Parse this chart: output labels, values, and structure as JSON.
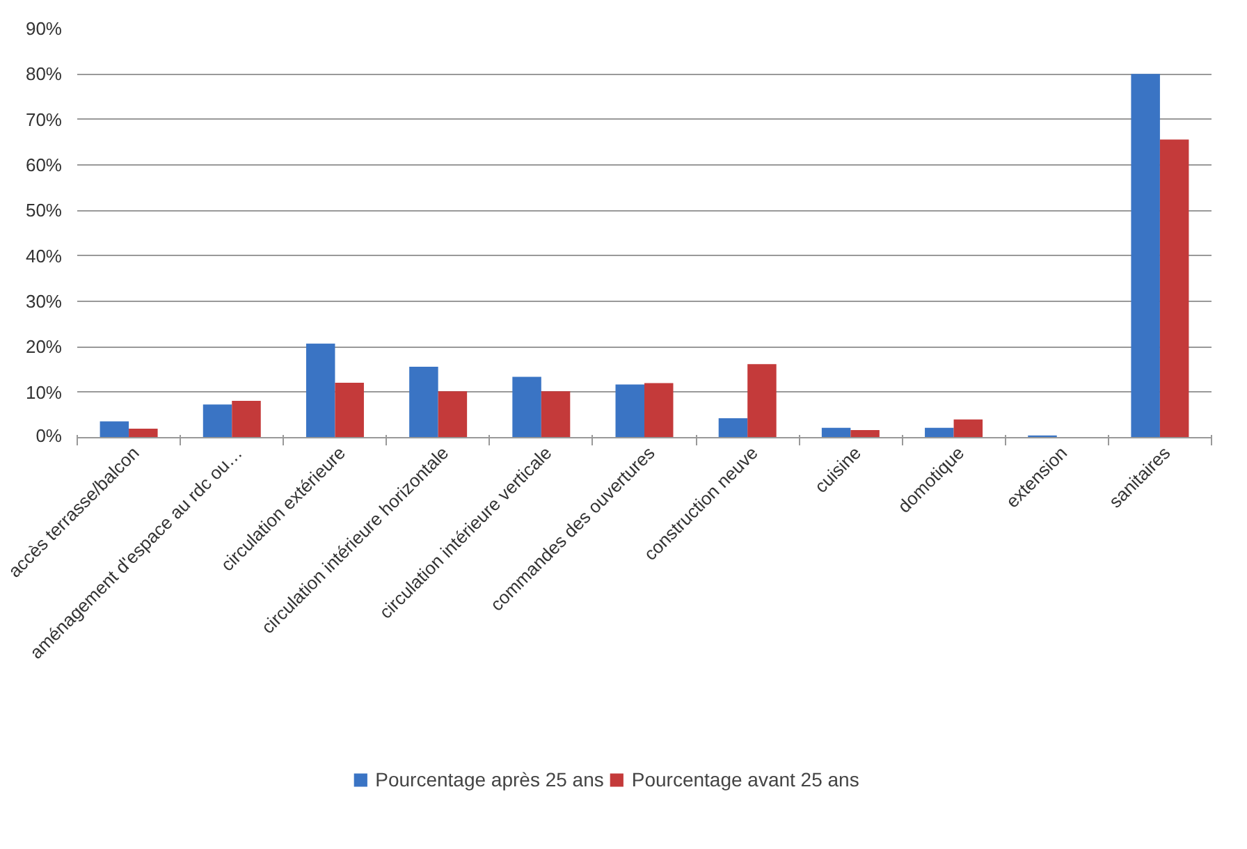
{
  "chart_data": {
    "type": "bar",
    "categories": [
      "accès terrasse/balcon",
      "aménagement d'espace au rdc ou…",
      "circulation extérieure",
      "circulation intérieure horizontale",
      "circulation intérieure verticale",
      "commandes des ouvertures",
      "construction neuve",
      "cuisine",
      "domotique",
      "extension",
      "sanitaires"
    ],
    "series": [
      {
        "name": "Pourcentage après 25 ans",
        "color": "#3a74c4",
        "values": [
          3.6,
          7.3,
          20.7,
          15.6,
          13.4,
          11.7,
          4.3,
          2.2,
          2.2,
          0.5,
          80
        ]
      },
      {
        "name": "Pourcentage avant 25 ans",
        "color": "#c43a3a",
        "values": [
          2.0,
          8.1,
          12.1,
          10.2,
          10.2,
          12.0,
          16.2,
          1.7,
          4.0,
          0,
          65.6
        ]
      }
    ],
    "ylim": [
      0,
      90
    ],
    "yticks": [
      {
        "value": 0,
        "label": "0%"
      },
      {
        "value": 10,
        "label": "10%"
      },
      {
        "value": 20,
        "label": "20%"
      },
      {
        "value": 30,
        "label": "30%"
      },
      {
        "value": 40,
        "label": "40%"
      },
      {
        "value": 50,
        "label": "50%"
      },
      {
        "value": 60,
        "label": "60%"
      },
      {
        "value": 70,
        "label": "70%"
      },
      {
        "value": 80,
        "label": "80%"
      },
      {
        "value": 90,
        "label": "90%"
      }
    ],
    "grid": "y",
    "legend": "bottom"
  }
}
